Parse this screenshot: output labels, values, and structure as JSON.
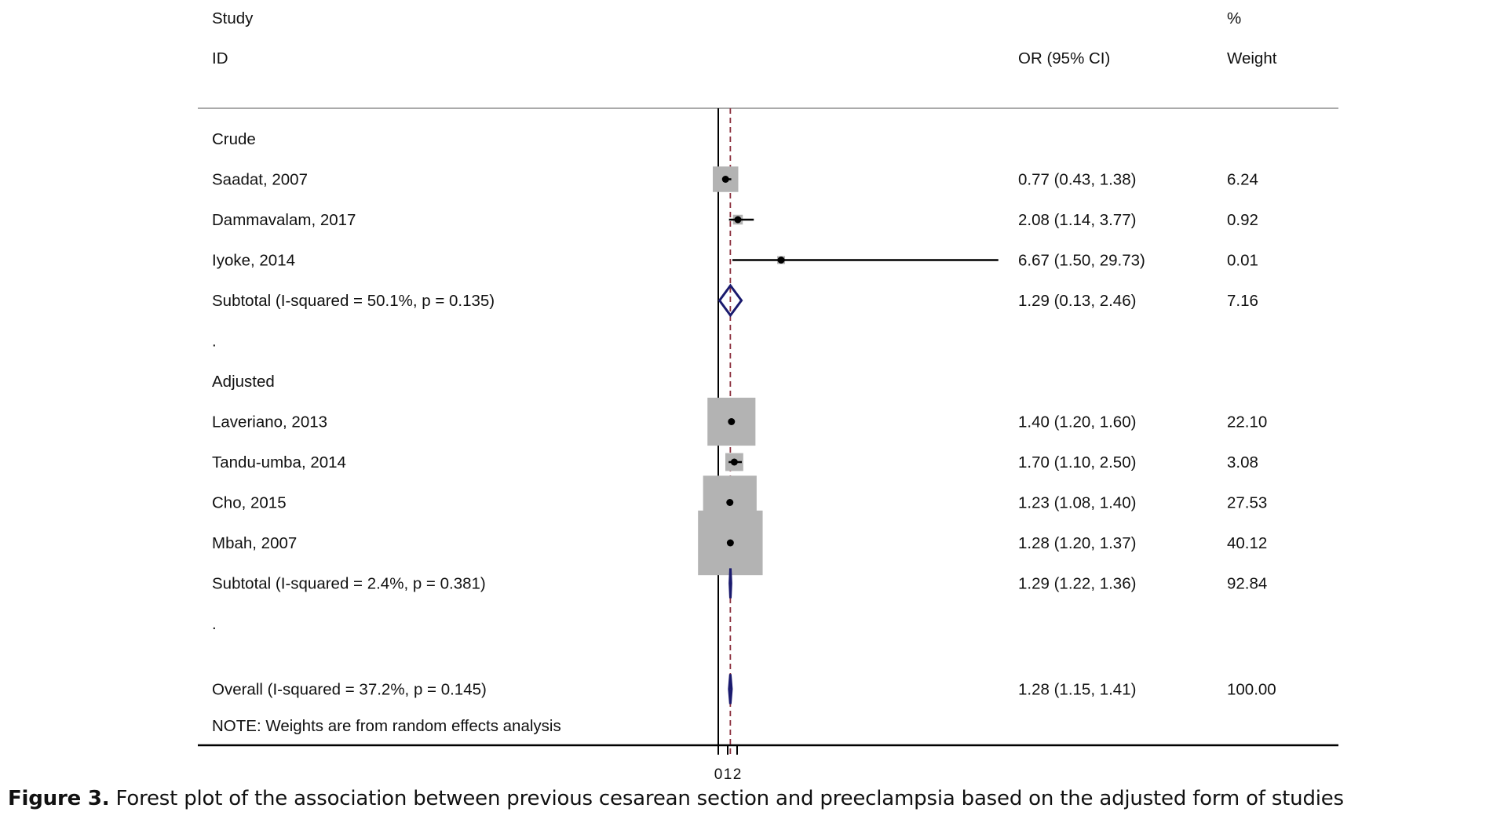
{
  "chart_data": {
    "type": "forest",
    "headers": {
      "study_line1": "Study",
      "study_line2": "ID",
      "or_header": "OR (95% CI)",
      "weight_line1": "%",
      "weight_line2": "Weight"
    },
    "rows": [
      {
        "kind": "group",
        "label": "Crude"
      },
      {
        "kind": "study",
        "label": "Saadat, 2007",
        "or": 0.77,
        "lo": 0.43,
        "hi": 1.38,
        "ci_text": "0.77 (0.43, 1.38)",
        "weight": 6.24,
        "weight_text": "6.24"
      },
      {
        "kind": "study",
        "label": "Dammavalam, 2017",
        "or": 2.08,
        "lo": 1.14,
        "hi": 3.77,
        "ci_text": "2.08 (1.14, 3.77)",
        "weight": 0.92,
        "weight_text": "0.92"
      },
      {
        "kind": "study",
        "label": "Iyoke, 2014",
        "or": 6.67,
        "lo": 1.5,
        "hi": 29.73,
        "ci_text": "6.67 (1.50, 29.73)",
        "weight": 0.01,
        "weight_text": "0.01"
      },
      {
        "kind": "subtotal",
        "label": "Subtotal  (I-squared = 50.1%, p = 0.135)",
        "or": 1.29,
        "lo": 0.13,
        "hi": 2.46,
        "ci_text": "1.29 (0.13, 2.46)",
        "weight_text": "7.16"
      },
      {
        "kind": "spacer",
        "label": "."
      },
      {
        "kind": "group",
        "label": "Adjusted"
      },
      {
        "kind": "study",
        "label": "Laveriano, 2013",
        "or": 1.4,
        "lo": 1.2,
        "hi": 1.6,
        "ci_text": "1.40 (1.20, 1.60)",
        "weight": 22.1,
        "weight_text": "22.10"
      },
      {
        "kind": "study",
        "label": "Tandu-umba, 2014",
        "or": 1.7,
        "lo": 1.1,
        "hi": 2.5,
        "ci_text": "1.70 (1.10, 2.50)",
        "weight": 3.08,
        "weight_text": "3.08"
      },
      {
        "kind": "study",
        "label": "Cho, 2015",
        "or": 1.23,
        "lo": 1.08,
        "hi": 1.4,
        "ci_text": "1.23 (1.08, 1.40)",
        "weight": 27.53,
        "weight_text": "27.53"
      },
      {
        "kind": "study",
        "label": "Mbah, 2007",
        "or": 1.28,
        "lo": 1.2,
        "hi": 1.37,
        "ci_text": "1.28 (1.20, 1.37)",
        "weight": 40.12,
        "weight_text": "40.12"
      },
      {
        "kind": "subtotal",
        "label": "Subtotal  (I-squared = 2.4%, p = 0.381)",
        "or": 1.29,
        "lo": 1.22,
        "hi": 1.36,
        "ci_text": "1.29 (1.22, 1.36)",
        "weight_text": "92.84"
      },
      {
        "kind": "spacer",
        "label": "."
      },
      {
        "kind": "overall",
        "label": "Overall  (I-squared = 37.2%, p = 0.145)",
        "or": 1.28,
        "lo": 1.15,
        "hi": 1.41,
        "ci_text": "1.28 (1.15, 1.41)",
        "weight_text": "100.00"
      }
    ],
    "note": "NOTE: Weights are from random effects analysis",
    "x_ticks": [
      "0",
      "1",
      "2"
    ],
    "x_tick_values": [
      0,
      1,
      2
    ],
    "null_line": 0,
    "pooled_line": 1.28,
    "x_range": [
      0,
      29.73
    ],
    "colors": {
      "box": "#b3b3b3",
      "ci_line": "#000000",
      "diamond": "#1a1a6e",
      "pooled_line": "#8b2e3c",
      "rule": "#aaaaaa"
    }
  },
  "caption": {
    "bold": "Figure 3.",
    "text": " Forest plot of the association between previous cesarean section and preeclampsia based on the adjusted form of studies"
  }
}
